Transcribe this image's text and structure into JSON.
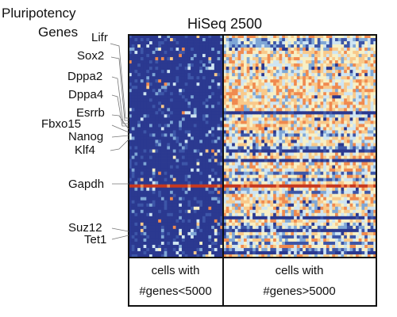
{
  "chart_data": {
    "type": "heatmap",
    "title": "HiSeq 2500",
    "gene_label_heading": [
      "Pluripotency",
      "Genes"
    ],
    "row_labels": [
      "Lifr",
      "Sox2",
      "Dppa2",
      "Dppa4",
      "Esrrb",
      "Fbxo15",
      "Nanog",
      "Klf4",
      "Gapdh",
      "Suz12",
      "Tet1"
    ],
    "column_groups": [
      {
        "name_lines": [
          "cells with",
          "#genes<5000"
        ],
        "value_level": "low"
      },
      {
        "name_lines": [
          "cells with",
          "#genes>5000"
        ],
        "value_level": "high"
      }
    ],
    "colorscale": [
      "#2b3990",
      "#3d56a8",
      "#7fa7d6",
      "#cfe5f2",
      "#f7f0c6",
      "#f9c98a",
      "#f08a4f",
      "#c8381e"
    ],
    "highlight_row_color": "#c8381e",
    "grid": false,
    "legend": "none"
  }
}
